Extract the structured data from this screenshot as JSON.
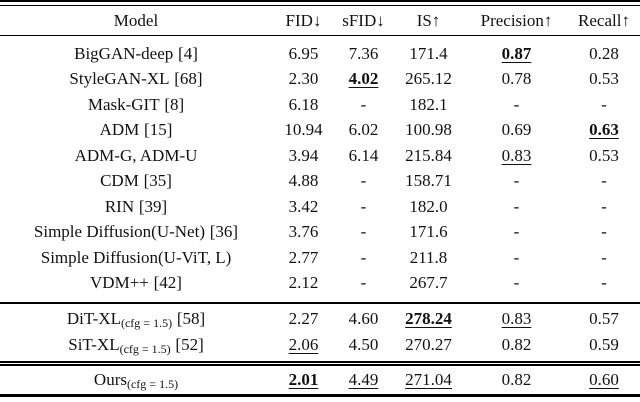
{
  "colors": {
    "background": "#ffffff",
    "text": "#111111",
    "rule": "#000000"
  },
  "header": {
    "model": "Model",
    "fid": "FID↓",
    "sfid": "sFID↓",
    "is": "IS↑",
    "precision": "Precision↑",
    "recall": "Recall↑"
  },
  "rows": [
    {
      "model": {
        "name": "BigGAN-deep",
        "sub": "",
        "ref": "[4]"
      },
      "fid": {
        "text": "6.95",
        "emph": ""
      },
      "sfid": {
        "text": "7.36",
        "emph": ""
      },
      "is": {
        "text": "171.4",
        "emph": ""
      },
      "precision": {
        "text": "0.87",
        "emph": "bold underline"
      },
      "recall": {
        "text": "0.28",
        "emph": ""
      }
    },
    {
      "model": {
        "name": "StyleGAN-XL",
        "sub": "",
        "ref": "[68]"
      },
      "fid": {
        "text": "2.30",
        "emph": ""
      },
      "sfid": {
        "text": "4.02",
        "emph": "bold underline"
      },
      "is": {
        "text": "265.12",
        "emph": ""
      },
      "precision": {
        "text": "0.78",
        "emph": ""
      },
      "recall": {
        "text": "0.53",
        "emph": ""
      }
    },
    {
      "model": {
        "name": "Mask-GIT",
        "sub": "",
        "ref": "[8]"
      },
      "fid": {
        "text": "6.18",
        "emph": ""
      },
      "sfid": {
        "text": "-",
        "emph": ""
      },
      "is": {
        "text": "182.1",
        "emph": ""
      },
      "precision": {
        "text": "-",
        "emph": ""
      },
      "recall": {
        "text": "-",
        "emph": ""
      }
    },
    {
      "model": {
        "name": "ADM",
        "sub": "",
        "ref": "[15]"
      },
      "fid": {
        "text": "10.94",
        "emph": ""
      },
      "sfid": {
        "text": "6.02",
        "emph": ""
      },
      "is": {
        "text": "100.98",
        "emph": ""
      },
      "precision": {
        "text": "0.69",
        "emph": ""
      },
      "recall": {
        "text": "0.63",
        "emph": "bold underline"
      }
    },
    {
      "model": {
        "name": "ADM-G, ADM-U",
        "sub": "",
        "ref": ""
      },
      "fid": {
        "text": "3.94",
        "emph": ""
      },
      "sfid": {
        "text": "6.14",
        "emph": ""
      },
      "is": {
        "text": "215.84",
        "emph": ""
      },
      "precision": {
        "text": "0.83",
        "emph": "underline"
      },
      "recall": {
        "text": "0.53",
        "emph": ""
      }
    },
    {
      "model": {
        "name": "CDM",
        "sub": "",
        "ref": "[35]"
      },
      "fid": {
        "text": "4.88",
        "emph": ""
      },
      "sfid": {
        "text": "-",
        "emph": ""
      },
      "is": {
        "text": "158.71",
        "emph": ""
      },
      "precision": {
        "text": "-",
        "emph": ""
      },
      "recall": {
        "text": "-",
        "emph": ""
      }
    },
    {
      "model": {
        "name": "RIN",
        "sub": "",
        "ref": "[39]"
      },
      "fid": {
        "text": "3.42",
        "emph": ""
      },
      "sfid": {
        "text": "-",
        "emph": ""
      },
      "is": {
        "text": "182.0",
        "emph": ""
      },
      "precision": {
        "text": "-",
        "emph": ""
      },
      "recall": {
        "text": "-",
        "emph": ""
      }
    },
    {
      "model": {
        "name": "Simple Diffusion(U-Net)",
        "sub": "",
        "ref": "[36]"
      },
      "fid": {
        "text": "3.76",
        "emph": ""
      },
      "sfid": {
        "text": "-",
        "emph": ""
      },
      "is": {
        "text": "171.6",
        "emph": ""
      },
      "precision": {
        "text": "-",
        "emph": ""
      },
      "recall": {
        "text": "-",
        "emph": ""
      }
    },
    {
      "model": {
        "name": "Simple Diffusion(U-ViT, L)",
        "sub": "",
        "ref": ""
      },
      "fid": {
        "text": "2.77",
        "emph": ""
      },
      "sfid": {
        "text": "-",
        "emph": ""
      },
      "is": {
        "text": "211.8",
        "emph": ""
      },
      "precision": {
        "text": "-",
        "emph": ""
      },
      "recall": {
        "text": "-",
        "emph": ""
      }
    },
    {
      "model": {
        "name": "VDM++",
        "sub": "",
        "ref": "[42]"
      },
      "fid": {
        "text": "2.12",
        "emph": ""
      },
      "sfid": {
        "text": "-",
        "emph": ""
      },
      "is": {
        "text": "267.7",
        "emph": ""
      },
      "precision": {
        "text": "-",
        "emph": ""
      },
      "recall": {
        "text": "-",
        "emph": ""
      }
    },
    {
      "model": {
        "name": "DiT-XL",
        "sub": "(cfg = 1.5)",
        "ref": "[58]"
      },
      "fid": {
        "text": "2.27",
        "emph": ""
      },
      "sfid": {
        "text": "4.60",
        "emph": ""
      },
      "is": {
        "text": "278.24",
        "emph": "bold underline"
      },
      "precision": {
        "text": "0.83",
        "emph": "underline"
      },
      "recall": {
        "text": "0.57",
        "emph": ""
      }
    },
    {
      "model": {
        "name": "SiT-XL",
        "sub": "(cfg = 1.5)",
        "ref": "[52]"
      },
      "fid": {
        "text": "2.06",
        "emph": "underline"
      },
      "sfid": {
        "text": "4.50",
        "emph": ""
      },
      "is": {
        "text": "270.27",
        "emph": ""
      },
      "precision": {
        "text": "0.82",
        "emph": ""
      },
      "recall": {
        "text": "0.59",
        "emph": ""
      }
    },
    {
      "model": {
        "name": "Ours",
        "sub": "(cfg = 1.5)",
        "ref": ""
      },
      "fid": {
        "text": "2.01",
        "emph": "bold underline"
      },
      "sfid": {
        "text": "4.49",
        "emph": "underline"
      },
      "is": {
        "text": "271.04",
        "emph": "underline"
      },
      "precision": {
        "text": "0.82",
        "emph": ""
      },
      "recall": {
        "text": "0.60",
        "emph": "underline"
      }
    }
  ]
}
